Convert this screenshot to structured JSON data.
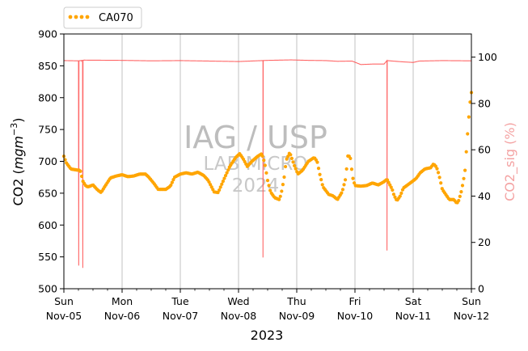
{
  "chart_data": {
    "type": "line",
    "x_label": "2023",
    "y_label_left": "CO2 (mgm⁻³)",
    "y_label_left_main": "CO2 (",
    "y_label_left_unit": "mgm",
    "y_label_left_exp": "−3",
    "y_label_left_close": ")",
    "y_label_right": "CO2_sig (%)",
    "ylim_left": [
      500,
      900
    ],
    "ylim_right": [
      0,
      110
    ],
    "yticks_left": [
      500,
      550,
      600,
      650,
      700,
      750,
      800,
      850,
      900
    ],
    "yticks_right": [
      0,
      20,
      40,
      60,
      80,
      100
    ],
    "x_range_days": [
      0,
      7
    ],
    "x_ticks": [
      {
        "day": "Sun",
        "date": "Nov-05"
      },
      {
        "day": "Mon",
        "date": "Nov-06"
      },
      {
        "day": "Tue",
        "date": "Nov-07"
      },
      {
        "day": "Wed",
        "date": "Nov-08"
      },
      {
        "day": "Thu",
        "date": "Nov-09"
      },
      {
        "day": "Fri",
        "date": "Nov-10"
      },
      {
        "day": "Sat",
        "date": "Nov-11"
      },
      {
        "day": "Sun",
        "date": "Nov-12"
      }
    ],
    "grid": "vertical",
    "legend_position": "top-left-outside",
    "watermark": [
      "IAG / USP",
      "LAB MICRO",
      "2024"
    ],
    "colors": {
      "co2": "#FFA500",
      "sig": "#FF5555",
      "right_axis_label": "#F4A3A3",
      "grid": "#c0c0c0"
    },
    "series": [
      {
        "name": "CA070",
        "axis": "left",
        "style": "dots",
        "keypoints": [
          [
            0.0,
            708
          ],
          [
            0.04,
            698
          ],
          [
            0.12,
            688
          ],
          [
            0.25,
            686
          ],
          [
            0.28,
            686
          ],
          [
            0.33,
            668
          ],
          [
            0.38,
            661
          ],
          [
            0.42,
            660
          ],
          [
            0.5,
            663
          ],
          [
            0.58,
            655
          ],
          [
            0.64,
            651
          ],
          [
            0.7,
            660
          ],
          [
            0.8,
            674
          ],
          [
            0.9,
            677
          ],
          [
            1.0,
            679
          ],
          [
            1.1,
            676
          ],
          [
            1.2,
            677
          ],
          [
            1.3,
            680
          ],
          [
            1.4,
            680
          ],
          [
            1.45,
            676
          ],
          [
            1.55,
            665
          ],
          [
            1.62,
            656
          ],
          [
            1.75,
            656
          ],
          [
            1.83,
            661
          ],
          [
            1.9,
            675
          ],
          [
            2.0,
            680
          ],
          [
            2.1,
            682
          ],
          [
            2.2,
            680
          ],
          [
            2.3,
            683
          ],
          [
            2.4,
            678
          ],
          [
            2.48,
            670
          ],
          [
            2.58,
            652
          ],
          [
            2.65,
            651
          ],
          [
            2.75,
            672
          ],
          [
            2.85,
            692
          ],
          [
            2.95,
            706
          ],
          [
            3.02,
            712
          ],
          [
            3.08,
            704
          ],
          [
            3.15,
            692
          ],
          [
            3.23,
            700
          ],
          [
            3.33,
            708
          ],
          [
            3.4,
            712
          ],
          [
            3.45,
            697
          ],
          [
            3.5,
            670
          ],
          [
            3.55,
            652
          ],
          [
            3.62,
            643
          ],
          [
            3.7,
            640
          ],
          [
            3.73,
            648
          ],
          [
            3.78,
            672
          ],
          [
            3.82,
            702
          ],
          [
            3.88,
            714
          ],
          [
            3.96,
            693
          ],
          [
            4.02,
            680
          ],
          [
            4.1,
            686
          ],
          [
            4.2,
            700
          ],
          [
            4.3,
            706
          ],
          [
            4.35,
            700
          ],
          [
            4.4,
            678
          ],
          [
            4.45,
            660
          ],
          [
            4.55,
            648
          ],
          [
            4.62,
            646
          ],
          [
            4.7,
            640
          ],
          [
            4.78,
            652
          ],
          [
            4.84,
            673
          ],
          [
            4.88,
            710
          ],
          [
            4.92,
            706
          ],
          [
            4.96,
            675
          ],
          [
            5.0,
            662
          ],
          [
            5.1,
            661
          ],
          [
            5.2,
            662
          ],
          [
            5.3,
            666
          ],
          [
            5.4,
            663
          ],
          [
            5.5,
            668
          ],
          [
            5.55,
            672
          ],
          [
            5.6,
            663
          ],
          [
            5.64,
            656
          ],
          [
            5.67,
            647
          ],
          [
            5.72,
            638
          ],
          [
            5.78,
            646
          ],
          [
            5.83,
            658
          ],
          [
            5.95,
            666
          ],
          [
            6.05,
            673
          ],
          [
            6.12,
            682
          ],
          [
            6.2,
            688
          ],
          [
            6.3,
            690
          ],
          [
            6.35,
            696
          ],
          [
            6.4,
            691
          ],
          [
            6.44,
            680
          ],
          [
            6.5,
            656
          ],
          [
            6.56,
            648
          ],
          [
            6.62,
            640
          ],
          [
            6.7,
            640
          ],
          [
            6.75,
            634
          ],
          [
            6.78,
            638
          ],
          [
            6.82,
            650
          ],
          [
            6.86,
            668
          ],
          [
            6.89,
            685
          ],
          [
            6.92,
            725
          ],
          [
            6.95,
            763
          ],
          [
            6.98,
            795
          ],
          [
            7.0,
            808
          ]
        ]
      },
      {
        "name": "CO2_sig",
        "axis": "right",
        "style": "line",
        "baseline": 98.5,
        "keypoints": [
          [
            0.0,
            98.5
          ],
          [
            0.25,
            98.4
          ],
          [
            0.35,
            98.7
          ],
          [
            1.0,
            98.6
          ],
          [
            1.5,
            98.4
          ],
          [
            2.0,
            98.5
          ],
          [
            2.5,
            98.3
          ],
          [
            3.0,
            98.1
          ],
          [
            3.3,
            98.4
          ],
          [
            3.5,
            98.6
          ],
          [
            3.9,
            98.8
          ],
          [
            4.2,
            98.6
          ],
          [
            4.5,
            98.5
          ],
          [
            4.7,
            98.2
          ],
          [
            4.95,
            98.3
          ],
          [
            5.1,
            96.8
          ],
          [
            5.3,
            97.0
          ],
          [
            5.5,
            97.0
          ],
          [
            5.55,
            98.5
          ],
          [
            5.8,
            98.0
          ],
          [
            6.0,
            97.7
          ],
          [
            6.1,
            98.3
          ],
          [
            6.5,
            98.5
          ],
          [
            7.0,
            98.4
          ]
        ],
        "dips": [
          {
            "x": 0.255,
            "y": 10.0
          },
          {
            "x": 0.3,
            "y": 98.4
          },
          {
            "x": 0.325,
            "y": 9.0
          },
          {
            "x": 3.42,
            "y": 13.5
          },
          {
            "x": 5.55,
            "y": 16.5
          }
        ]
      }
    ]
  }
}
